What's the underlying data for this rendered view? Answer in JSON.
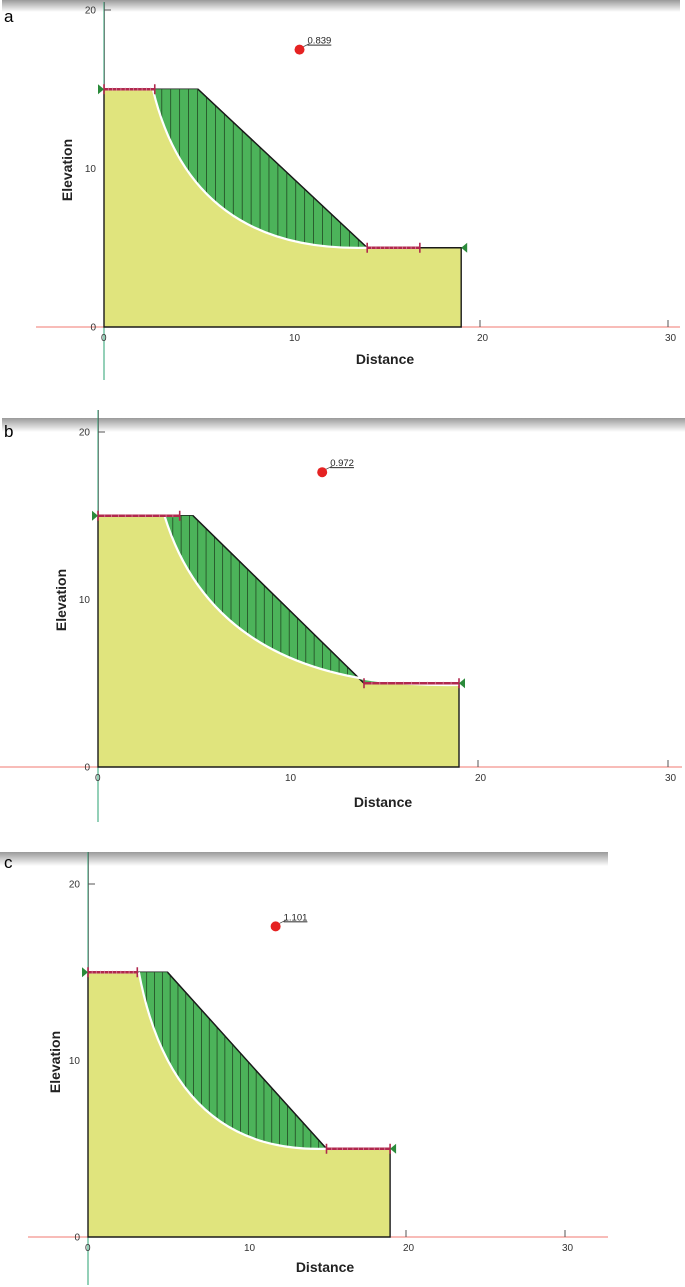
{
  "panels": [
    {
      "label": "a",
      "factor_of_safety": "0.839",
      "x_axis": {
        "title": "Distance",
        "ticks": [
          "0",
          "10",
          "20",
          "30"
        ]
      },
      "y_axis": {
        "title": "Elevation",
        "ticks": [
          "0",
          "10",
          "20"
        ]
      },
      "slope_profile": [
        [
          0,
          15
        ],
        [
          5,
          15
        ],
        [
          14,
          5
        ],
        [
          19,
          5
        ],
        [
          19,
          0
        ],
        [
          0,
          0
        ]
      ],
      "slip_surface": {
        "entry": [
          2.6,
          15
        ],
        "exit": [
          14,
          5
        ]
      },
      "slip_center": [
        10.4,
        17.5
      ],
      "entry_range": [
        0,
        2.7
      ],
      "exit_range": [
        14,
        16.8
      ]
    },
    {
      "label": "b",
      "factor_of_safety": "0.972",
      "x_axis": {
        "title": "Distance",
        "ticks": [
          "0",
          "10",
          "20",
          "30"
        ]
      },
      "y_axis": {
        "title": "Elevation",
        "ticks": [
          "0",
          "10",
          "20"
        ]
      },
      "slope_profile": [
        [
          0,
          15
        ],
        [
          5,
          15
        ],
        [
          14,
          5
        ],
        [
          19,
          5
        ],
        [
          19,
          0
        ],
        [
          0,
          0
        ]
      ],
      "slip_surface": {
        "entry": [
          3.5,
          15
        ],
        "exit": [
          19,
          4.9
        ]
      },
      "slip_center": [
        11.8,
        17.6
      ],
      "entry_range": [
        0,
        4.3
      ],
      "exit_range": [
        14,
        19
      ]
    },
    {
      "label": "c",
      "factor_of_safety": "1.101",
      "x_axis": {
        "title": "Distance",
        "ticks": [
          "0",
          "10",
          "20",
          "30"
        ]
      },
      "y_axis": {
        "title": "Elevation",
        "ticks": [
          "0",
          "10",
          "20"
        ]
      },
      "slope_profile": [
        [
          0,
          15
        ],
        [
          5,
          15
        ],
        [
          15,
          5
        ],
        [
          19,
          5
        ],
        [
          19,
          0
        ],
        [
          0,
          0
        ]
      ],
      "slip_surface": {
        "entry": [
          3.2,
          15
        ],
        "exit": [
          15,
          5
        ]
      },
      "slip_center": [
        11.8,
        17.6
      ],
      "entry_range": [
        0,
        3.1
      ],
      "exit_range": [
        15,
        19
      ]
    }
  ],
  "colors": {
    "soil": "#e0e47d",
    "sliding_mass": "#4cb35a",
    "slip_line": "#ffffff",
    "range_marker": "#b0284e",
    "support_marker": "#2a8a3a",
    "center_point": "#e52222",
    "y_axis_line": "#2aa070",
    "x_axis_line": "#f07a70"
  }
}
